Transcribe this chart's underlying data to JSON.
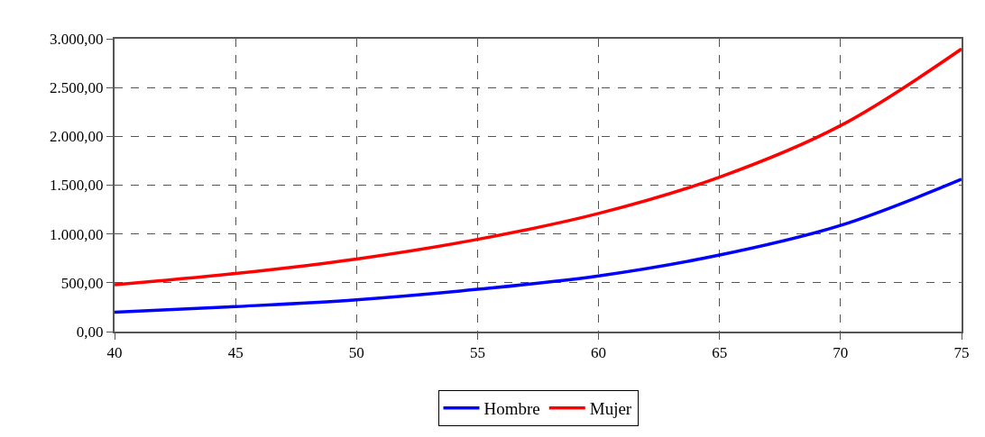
{
  "chart_data": {
    "type": "line",
    "x": [
      40,
      45,
      50,
      55,
      60,
      65,
      70,
      75
    ],
    "series": [
      {
        "name": "Hombre",
        "color": "#0000ff",
        "values": [
          198,
          256,
          326,
          433,
          570,
          784,
          1088,
          1561
        ]
      },
      {
        "name": "Mujer",
        "color": "#ff0000",
        "values": [
          479,
          595,
          744,
          945,
          1210,
          1582,
          2110,
          2896
        ]
      }
    ],
    "xlim": [
      40,
      75
    ],
    "xticks": [
      40,
      45,
      50,
      55,
      60,
      65,
      70,
      75
    ],
    "ylim": [
      0,
      3000
    ],
    "yticks": [
      {
        "value": 0,
        "label": "0,00"
      },
      {
        "value": 500,
        "label": "500,00"
      },
      {
        "value": 1000,
        "label": "1.000,00"
      },
      {
        "value": 1500,
        "label": "1.500,00"
      },
      {
        "value": 2000,
        "label": "2.000,00"
      },
      {
        "value": 2500,
        "label": "2.500,00"
      },
      {
        "value": 3000,
        "label": "3.000,00"
      }
    ],
    "grid": true,
    "legend": "bottom",
    "marker": "none",
    "line_style": "solid"
  }
}
